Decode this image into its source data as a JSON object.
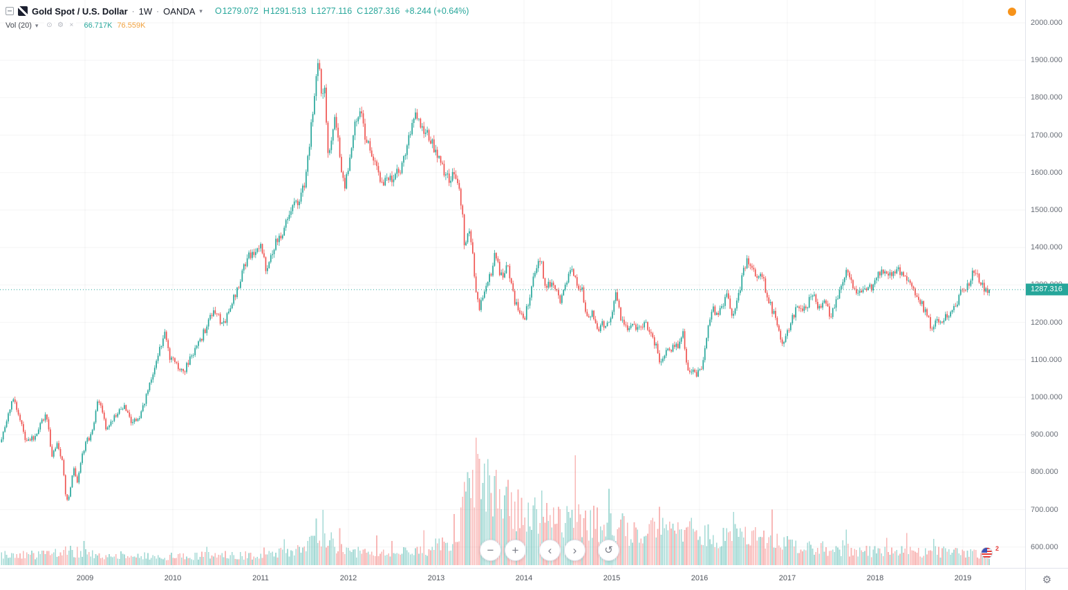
{
  "colors": {
    "up": "#26a69a",
    "down": "#ef5350",
    "vol_up": "rgba(38,166,154,0.42)",
    "vol_down": "rgba(239,83,80,0.42)",
    "vol_ma": "#f0a03c",
    "alert_orange": "#f7931a",
    "last_price_line": "#26a69a",
    "grid": "rgba(42,46,57,0.05)"
  },
  "legend": {
    "symbol": "Gold Spot / U.S. Dollar",
    "separator": "·",
    "interval": "1W",
    "exchange": "OANDA",
    "ohlc": {
      "o_label": "O",
      "o_value": "1279.072",
      "h_label": "H",
      "h_value": "1291.513",
      "l_label": "L",
      "l_value": "1277.116",
      "c_label": "C",
      "c_value": "1287.316",
      "change": "+8.244 (+0.64%)"
    },
    "volume": {
      "label": "Vol (20)",
      "value": "66.717K",
      "ma": "76.559K"
    }
  },
  "icons": {
    "chevron_down": "▾",
    "eye": "⊙",
    "gear": "⚙",
    "close": "×",
    "corner_gear": "⚙"
  },
  "controls": {
    "zoom_out": "−",
    "zoom_in": "+",
    "scroll_left": "‹",
    "scroll_right": "›",
    "reset": "↺"
  },
  "price_axis": {
    "ticks": [
      "2000.000",
      "1900.000",
      "1800.000",
      "1700.000",
      "1600.000",
      "1500.000",
      "1400.000",
      "1300.000",
      "1200.000",
      "1100.000",
      "1000.000",
      "900.000",
      "800.000",
      "700.000",
      "600.000"
    ],
    "last_price_label": "1287.316"
  },
  "time_axis": {
    "ticks": [
      "2009",
      "2010",
      "2011",
      "2012",
      "2013",
      "2014",
      "2015",
      "2016",
      "2017",
      "2018",
      "2019"
    ]
  },
  "misc": {
    "flag_badge": "2"
  },
  "chart_data": {
    "type": "candlestick",
    "title": "Gold Spot / U.S. Dollar · 1W · OANDA",
    "interval": "1W",
    "x_range": [
      2008.03,
      2019.3
    ],
    "y_range": [
      600,
      2000
    ],
    "last_close": 1287.316,
    "seed": 9,
    "note": "Weekly OHLC candles synthesized deterministically from these price/volume anchor points (decimal-year, value) read off the chart.",
    "price_anchors": [
      [
        2008.03,
        880
      ],
      [
        2008.1,
        925
      ],
      [
        2008.18,
        1005
      ],
      [
        2008.25,
        945
      ],
      [
        2008.33,
        880
      ],
      [
        2008.42,
        895
      ],
      [
        2008.5,
        930
      ],
      [
        2008.56,
        962
      ],
      [
        2008.62,
        838
      ],
      [
        2008.68,
        878
      ],
      [
        2008.74,
        830
      ],
      [
        2008.79,
        718
      ],
      [
        2008.83,
        748
      ],
      [
        2008.87,
        808
      ],
      [
        2008.91,
        768
      ],
      [
        2008.96,
        838
      ],
      [
        2009.0,
        875
      ],
      [
        2009.08,
        905
      ],
      [
        2009.15,
        995
      ],
      [
        2009.24,
        918
      ],
      [
        2009.33,
        945
      ],
      [
        2009.44,
        975
      ],
      [
        2009.54,
        930
      ],
      [
        2009.64,
        955
      ],
      [
        2009.74,
        1042
      ],
      [
        2009.84,
        1118
      ],
      [
        2009.91,
        1178
      ],
      [
        2009.96,
        1108
      ],
      [
        2010.04,
        1088
      ],
      [
        2010.12,
        1062
      ],
      [
        2010.2,
        1108
      ],
      [
        2010.3,
        1142
      ],
      [
        2010.42,
        1212
      ],
      [
        2010.49,
        1236
      ],
      [
        2010.57,
        1188
      ],
      [
        2010.65,
        1235
      ],
      [
        2010.75,
        1298
      ],
      [
        2010.84,
        1368
      ],
      [
        2010.92,
        1388
      ],
      [
        2011.0,
        1412
      ],
      [
        2011.07,
        1332
      ],
      [
        2011.16,
        1408
      ],
      [
        2011.24,
        1432
      ],
      [
        2011.32,
        1498
      ],
      [
        2011.38,
        1512
      ],
      [
        2011.45,
        1528
      ],
      [
        2011.52,
        1592
      ],
      [
        2011.58,
        1738
      ],
      [
        2011.62,
        1828
      ],
      [
        2011.66,
        1895
      ],
      [
        2011.7,
        1782
      ],
      [
        2011.73,
        1832
      ],
      [
        2011.76,
        1655
      ],
      [
        2011.8,
        1678
      ],
      [
        2011.84,
        1748
      ],
      [
        2011.88,
        1702
      ],
      [
        2011.92,
        1607
      ],
      [
        2011.96,
        1568
      ],
      [
        2012.0,
        1605
      ],
      [
        2012.07,
        1722
      ],
      [
        2012.14,
        1772
      ],
      [
        2012.2,
        1682
      ],
      [
        2012.29,
        1642
      ],
      [
        2012.37,
        1582
      ],
      [
        2012.45,
        1572
      ],
      [
        2012.54,
        1592
      ],
      [
        2012.61,
        1618
      ],
      [
        2012.69,
        1688
      ],
      [
        2012.76,
        1772
      ],
      [
        2012.84,
        1722
      ],
      [
        2012.92,
        1692
      ],
      [
        2013.0,
        1656
      ],
      [
        2013.07,
        1612
      ],
      [
        2013.14,
        1578
      ],
      [
        2013.22,
        1598
      ],
      [
        2013.27,
        1552
      ],
      [
        2013.3,
        1482
      ],
      [
        2013.32,
        1402
      ],
      [
        2013.37,
        1462
      ],
      [
        2013.41,
        1392
      ],
      [
        2013.45,
        1292
      ],
      [
        2013.49,
        1232
      ],
      [
        2013.54,
        1282
      ],
      [
        2013.59,
        1312
      ],
      [
        2013.64,
        1338
      ],
      [
        2013.67,
        1392
      ],
      [
        2013.72,
        1332
      ],
      [
        2013.77,
        1322
      ],
      [
        2013.81,
        1352
      ],
      [
        2013.85,
        1316
      ],
      [
        2013.9,
        1252
      ],
      [
        2013.95,
        1232
      ],
      [
        2014.0,
        1206
      ],
      [
        2014.05,
        1252
      ],
      [
        2014.11,
        1322
      ],
      [
        2014.19,
        1378
      ],
      [
        2014.24,
        1296
      ],
      [
        2014.3,
        1302
      ],
      [
        2014.37,
        1288
      ],
      [
        2014.42,
        1252
      ],
      [
        2014.49,
        1316
      ],
      [
        2014.54,
        1338
      ],
      [
        2014.6,
        1306
      ],
      [
        2014.66,
        1286
      ],
      [
        2014.72,
        1216
      ],
      [
        2014.79,
        1222
      ],
      [
        2014.84,
        1166
      ],
      [
        2014.89,
        1198
      ],
      [
        2014.95,
        1192
      ],
      [
        2015.0,
        1216
      ],
      [
        2015.05,
        1288
      ],
      [
        2015.11,
        1202
      ],
      [
        2015.19,
        1178
      ],
      [
        2015.24,
        1202
      ],
      [
        2015.3,
        1182
      ],
      [
        2015.37,
        1202
      ],
      [
        2015.44,
        1172
      ],
      [
        2015.51,
        1136
      ],
      [
        2015.55,
        1088
      ],
      [
        2015.61,
        1116
      ],
      [
        2015.69,
        1134
      ],
      [
        2015.77,
        1136
      ],
      [
        2015.81,
        1178
      ],
      [
        2015.86,
        1068
      ],
      [
        2015.92,
        1072
      ],
      [
        2015.98,
        1062
      ],
      [
        2016.04,
        1094
      ],
      [
        2016.09,
        1174
      ],
      [
        2016.14,
        1238
      ],
      [
        2016.2,
        1222
      ],
      [
        2016.27,
        1238
      ],
      [
        2016.32,
        1288
      ],
      [
        2016.37,
        1216
      ],
      [
        2016.44,
        1262
      ],
      [
        2016.5,
        1338
      ],
      [
        2016.54,
        1362
      ],
      [
        2016.6,
        1342
      ],
      [
        2016.66,
        1326
      ],
      [
        2016.72,
        1318
      ],
      [
        2016.78,
        1262
      ],
      [
        2016.84,
        1226
      ],
      [
        2016.89,
        1182
      ],
      [
        2016.95,
        1136
      ],
      [
        2017.02,
        1182
      ],
      [
        2017.09,
        1234
      ],
      [
        2017.17,
        1230
      ],
      [
        2017.24,
        1254
      ],
      [
        2017.3,
        1288
      ],
      [
        2017.35,
        1232
      ],
      [
        2017.42,
        1254
      ],
      [
        2017.49,
        1216
      ],
      [
        2017.55,
        1258
      ],
      [
        2017.61,
        1288
      ],
      [
        2017.67,
        1330
      ],
      [
        2017.72,
        1312
      ],
      [
        2017.78,
        1282
      ],
      [
        2017.84,
        1274
      ],
      [
        2017.9,
        1286
      ],
      [
        2017.96,
        1296
      ],
      [
        2018.02,
        1322
      ],
      [
        2018.07,
        1344
      ],
      [
        2018.13,
        1322
      ],
      [
        2018.2,
        1326
      ],
      [
        2018.27,
        1342
      ],
      [
        2018.33,
        1316
      ],
      [
        2018.4,
        1296
      ],
      [
        2018.46,
        1272
      ],
      [
        2018.52,
        1252
      ],
      [
        2018.59,
        1222
      ],
      [
        2018.64,
        1186
      ],
      [
        2018.7,
        1202
      ],
      [
        2018.75,
        1192
      ],
      [
        2018.81,
        1222
      ],
      [
        2018.87,
        1226
      ],
      [
        2018.92,
        1246
      ],
      [
        2018.98,
        1282
      ],
      [
        2019.03,
        1292
      ],
      [
        2019.09,
        1318
      ],
      [
        2019.14,
        1342
      ],
      [
        2019.19,
        1302
      ],
      [
        2019.25,
        1292
      ],
      [
        2019.3,
        1287.3
      ]
    ],
    "volume_anchors_thousands": [
      [
        2008.03,
        65
      ],
      [
        2008.6,
        70
      ],
      [
        2008.8,
        95
      ],
      [
        2009.0,
        72
      ],
      [
        2009.5,
        60
      ],
      [
        2010.0,
        56
      ],
      [
        2010.8,
        66
      ],
      [
        2011.0,
        62
      ],
      [
        2011.4,
        92
      ],
      [
        2011.55,
        150
      ],
      [
        2011.63,
        240
      ],
      [
        2011.72,
        195
      ],
      [
        2011.85,
        125
      ],
      [
        2012.0,
        88
      ],
      [
        2012.5,
        76
      ],
      [
        2012.9,
        96
      ],
      [
        2013.0,
        115
      ],
      [
        2013.2,
        165
      ],
      [
        2013.3,
        350
      ],
      [
        2013.42,
        540
      ],
      [
        2013.46,
        780
      ],
      [
        2013.5,
        570
      ],
      [
        2013.6,
        510
      ],
      [
        2013.7,
        530
      ],
      [
        2013.8,
        430
      ],
      [
        2013.9,
        385
      ],
      [
        2014.0,
        405
      ],
      [
        2014.1,
        365
      ],
      [
        2014.25,
        335
      ],
      [
        2014.4,
        305
      ],
      [
        2014.55,
        335
      ],
      [
        2014.7,
        285
      ],
      [
        2014.85,
        262
      ],
      [
        2015.0,
        252
      ],
      [
        2015.2,
        222
      ],
      [
        2015.45,
        232
      ],
      [
        2015.55,
        272
      ],
      [
        2015.7,
        222
      ],
      [
        2015.9,
        232
      ],
      [
        2016.0,
        212
      ],
      [
        2016.2,
        182
      ],
      [
        2016.5,
        192
      ],
      [
        2016.7,
        162
      ],
      [
        2016.9,
        152
      ],
      [
        2017.0,
        132
      ],
      [
        2017.3,
        112
      ],
      [
        2017.6,
        102
      ],
      [
        2017.9,
        96
      ],
      [
        2018.0,
        92
      ],
      [
        2018.3,
        86
      ],
      [
        2018.6,
        82
      ],
      [
        2018.9,
        96
      ],
      [
        2019.0,
        82
      ],
      [
        2019.2,
        66
      ],
      [
        2019.3,
        60
      ]
    ]
  }
}
